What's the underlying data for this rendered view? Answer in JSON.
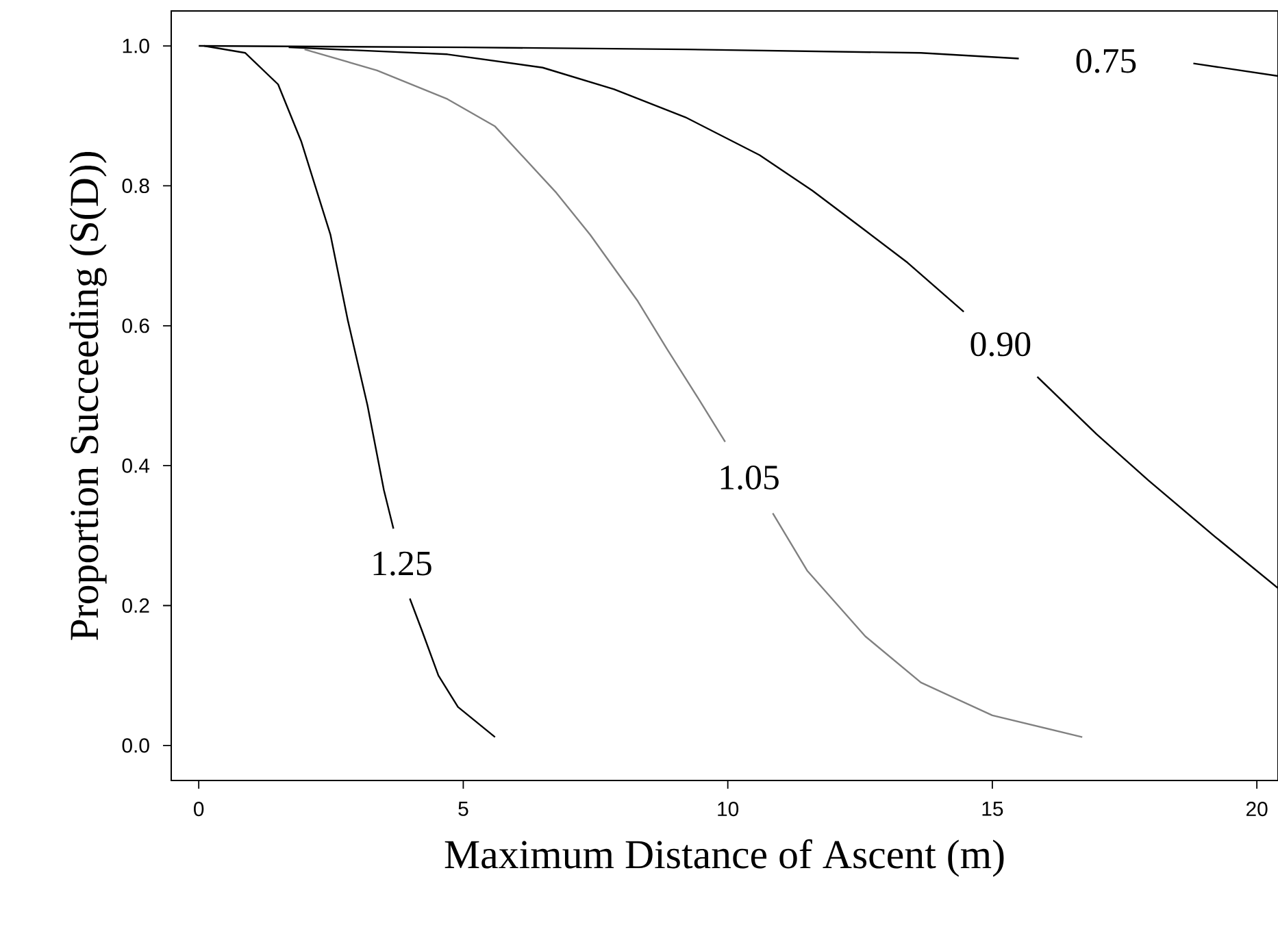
{
  "chart_data": {
    "type": "line",
    "xlabel": "Maximum Distance of Ascent (m)",
    "ylabel": "Proportion Succeeding (S(D))",
    "xlim": [
      -0.52,
      20.4
    ],
    "ylim": [
      -0.05,
      1.05
    ],
    "xticks": [
      0,
      5,
      10,
      15,
      20
    ],
    "yticks": [
      {
        "value": 0,
        "label": "0.0"
      },
      0.2,
      0.4,
      0.6,
      0.8,
      {
        "value": 1,
        "label": "1.0"
      }
    ],
    "series": [
      {
        "name": "0.75",
        "color": "#000000",
        "x": [
          0,
          5,
          9.2,
          13.65,
          15.5,
          17.15,
          18.8,
          20.4
        ],
        "values": [
          1.0,
          0.998,
          0.995,
          0.99,
          0.982,
          null,
          0.975,
          0.957
        ]
      },
      {
        "name": "0.90",
        "color": "#000000",
        "x": [
          1.7,
          4.7,
          6.5,
          7.85,
          9.2,
          10.6,
          11.6,
          12.6,
          13.4,
          14.46,
          15.15,
          15.85,
          16.97,
          17.95,
          19.2,
          20.4
        ],
        "values": [
          0.998,
          0.988,
          0.969,
          0.938,
          0.898,
          0.844,
          0.793,
          0.736,
          0.69,
          0.62,
          null,
          0.527,
          0.445,
          0.379,
          0.299,
          0.225
        ]
      },
      {
        "name": "1.05",
        "color": "#808080",
        "x": [
          2.0,
          3.37,
          4.7,
          5.6,
          6.76,
          7.4,
          8.3,
          8.84,
          9.46,
          9.95,
          10.4,
          10.85,
          11.5,
          12.6,
          13.65,
          15.0,
          16.7
        ],
        "values": [
          0.995,
          0.965,
          0.924,
          0.885,
          0.79,
          0.73,
          0.635,
          0.568,
          0.494,
          0.434,
          null,
          0.332,
          0.25,
          0.156,
          0.09,
          0.043,
          0.012
        ]
      },
      {
        "name": "1.25",
        "color": "#000000",
        "x": [
          0.1,
          0.88,
          1.5,
          1.94,
          2.2,
          2.49,
          2.82,
          3.19,
          3.5,
          3.68,
          3.84,
          3.99,
          4.22,
          4.53,
          4.9,
          5.6
        ],
        "values": [
          1.0,
          0.99,
          0.945,
          0.863,
          0.8,
          0.73,
          0.607,
          0.486,
          0.365,
          0.31,
          null,
          0.21,
          0.164,
          0.1,
          0.055,
          0.012
        ]
      }
    ]
  }
}
